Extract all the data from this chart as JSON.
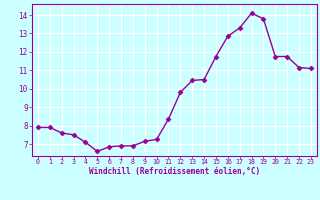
{
  "x": [
    0,
    1,
    2,
    3,
    4,
    5,
    6,
    7,
    8,
    9,
    10,
    11,
    12,
    13,
    14,
    15,
    16,
    17,
    18,
    19,
    20,
    21,
    22,
    23
  ],
  "y": [
    7.9,
    7.9,
    7.6,
    7.5,
    7.1,
    6.6,
    6.85,
    6.9,
    6.9,
    7.15,
    7.25,
    8.35,
    9.8,
    10.45,
    10.5,
    11.75,
    12.85,
    13.3,
    14.1,
    13.8,
    11.75,
    11.75,
    11.15,
    11.1
  ],
  "x_ticks": [
    0,
    1,
    2,
    3,
    4,
    5,
    6,
    7,
    8,
    9,
    10,
    11,
    12,
    13,
    14,
    15,
    16,
    17,
    18,
    19,
    20,
    21,
    22,
    23
  ],
  "y_ticks": [
    7,
    8,
    9,
    10,
    11,
    12,
    13,
    14
  ],
  "ylim": [
    6.35,
    14.6
  ],
  "xlim": [
    -0.5,
    23.5
  ],
  "xlabel": "Windchill (Refroidissement éolien,°C)",
  "line_color": "#990099",
  "bg_color": "#ccffff",
  "grid_color": "#aadddd",
  "marker": "D",
  "marker_size": 2.5,
  "linewidth": 1.0
}
